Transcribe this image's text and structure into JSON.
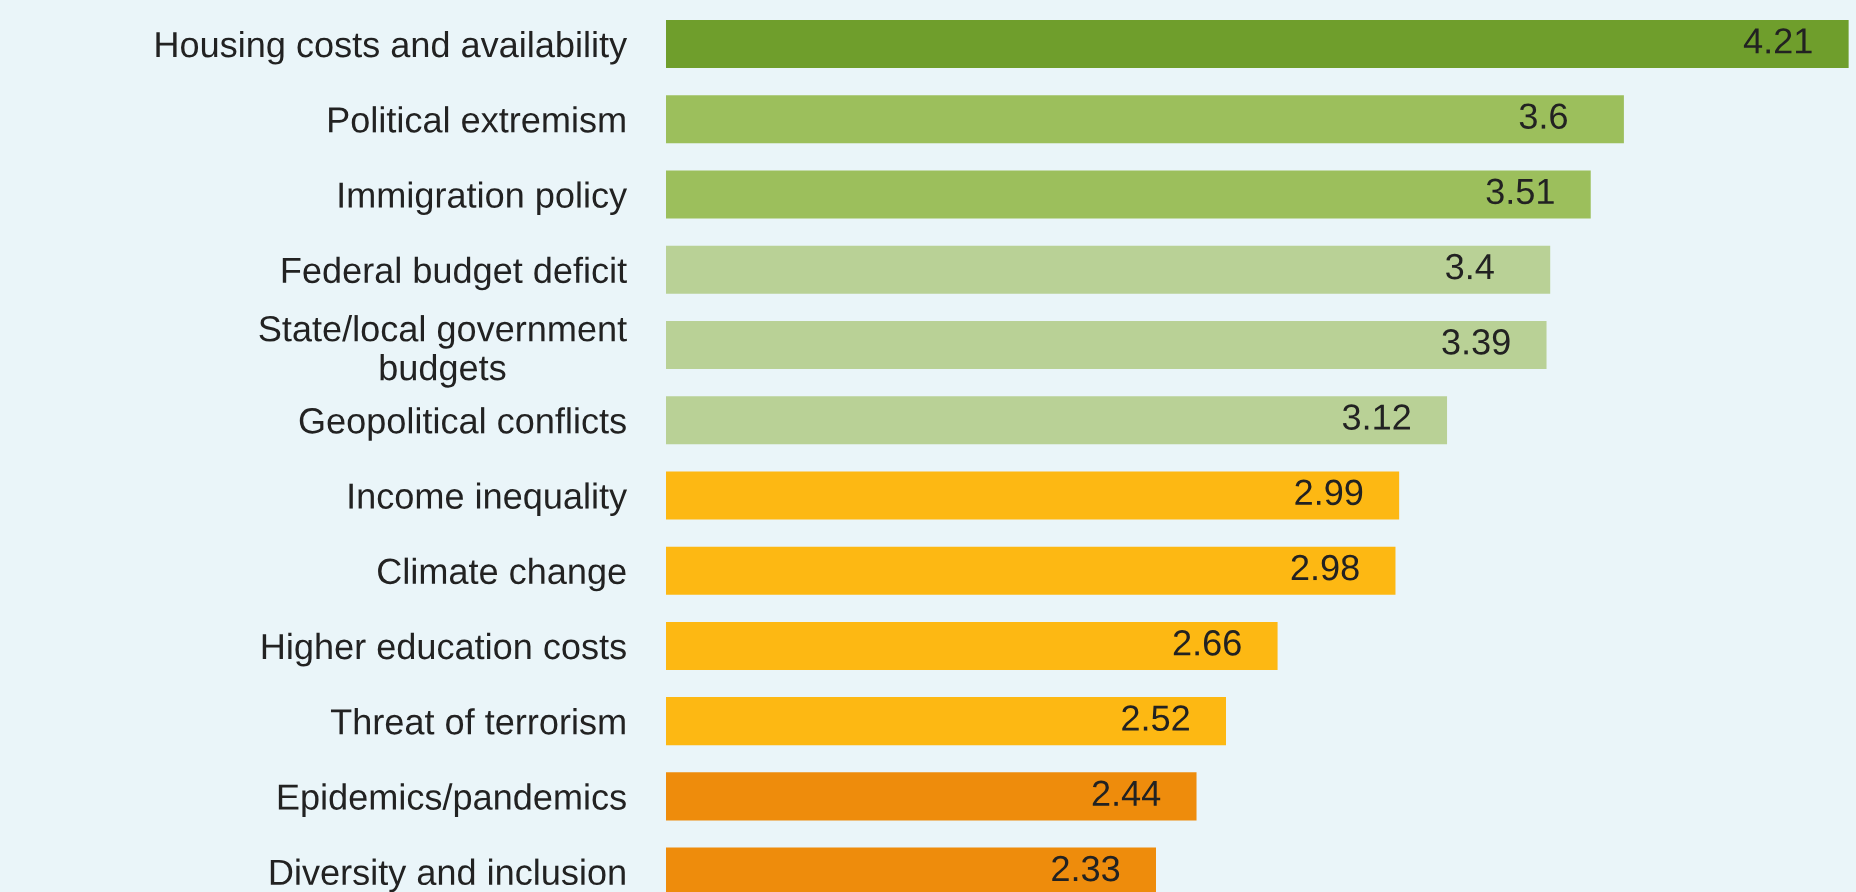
{
  "chart_data": {
    "type": "bar",
    "orientation": "horizontal",
    "categories": [
      "Housing costs and availability",
      "Political extremism",
      "Immigration policy",
      "Federal budget deficit",
      "State/local government\nbudgets",
      "Geopolitical conflicts",
      "Income inequality",
      "Climate change",
      "Higher education costs",
      "Threat of terrorism",
      "Epidemics/pandemics",
      "Diversity and inclusion"
    ],
    "values": [
      4.21,
      3.6,
      3.51,
      3.4,
      3.39,
      3.12,
      2.99,
      2.98,
      2.66,
      2.52,
      2.44,
      2.33
    ],
    "colors": [
      "#6f9e2c",
      "#9cbf5c",
      "#9cbf5c",
      "#b9d196",
      "#b9d196",
      "#b9d196",
      "#fdb813",
      "#fdb813",
      "#fdb813",
      "#fdb813",
      "#ee8c0c",
      "#ee8c0c"
    ],
    "xlim": [
      1,
      4.23
    ],
    "tick_labels": "y",
    "data_labels": true,
    "grid": false
  }
}
